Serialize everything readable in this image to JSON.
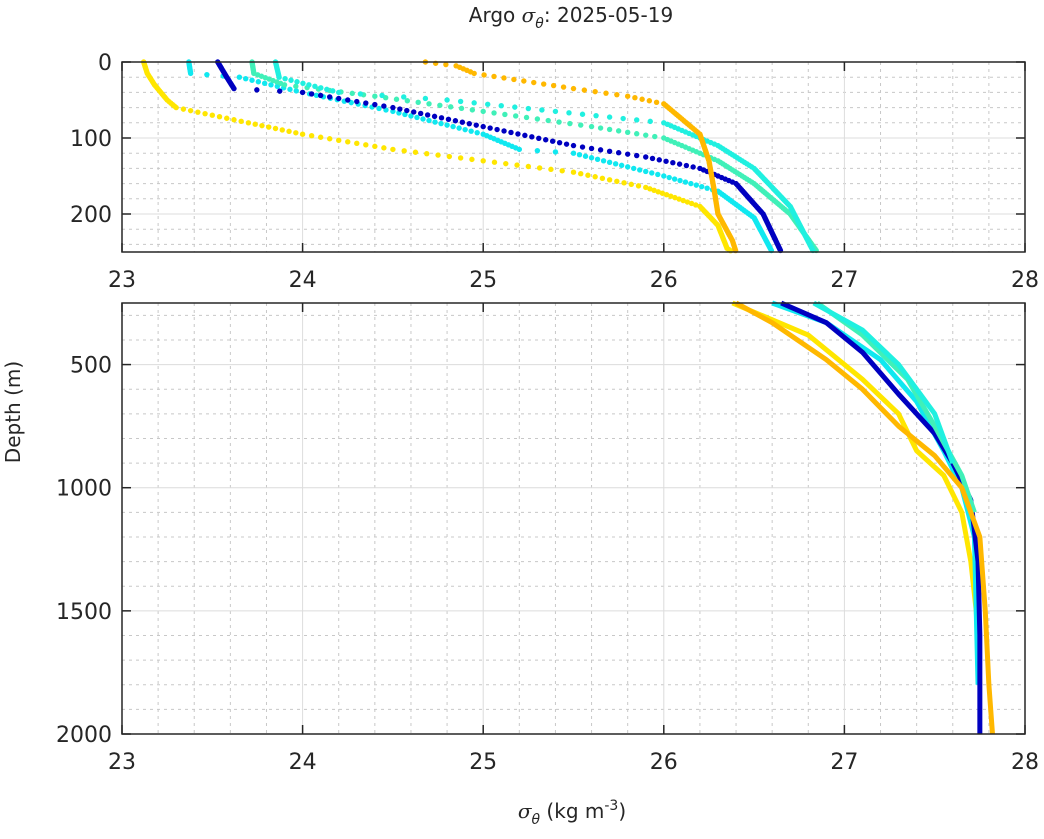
{
  "chart_data": {
    "type": "scatter",
    "title_prefix": "Argo ",
    "title_symbol": "σ",
    "title_sub": "θ",
    "title_suffix": ": 2025-05-19",
    "ylabel": "Depth (m)",
    "xlabel_symbol": "σ",
    "xlabel_sub": "θ",
    "xlabel_units": " (kg m",
    "xlabel_exp": "-3",
    "xlabel_close": ")",
    "xlim": [
      23,
      28
    ],
    "xticks": [
      "23",
      "24",
      "25",
      "26",
      "27",
      "28"
    ],
    "panels": [
      {
        "name": "upper",
        "ylim": [
          0,
          250
        ],
        "yticks": [
          "0",
          "100",
          "200"
        ],
        "yticks_values": [
          0,
          100,
          200
        ],
        "minor_y": 20,
        "style": "dots"
      },
      {
        "name": "lower",
        "ylim": [
          250,
          2000
        ],
        "yticks": [
          "500",
          "1000",
          "1500",
          "2000"
        ],
        "yticks_values": [
          500,
          1000,
          1500,
          2000
        ],
        "minor_y": 100,
        "style": "line"
      }
    ],
    "grid": true,
    "series": [
      {
        "name": "profile-yellow",
        "color": "#FFE600",
        "points": [
          [
            23.12,
            0
          ],
          [
            23.14,
            15
          ],
          [
            23.18,
            30
          ],
          [
            23.25,
            50
          ],
          [
            23.3,
            60
          ],
          [
            23.5,
            70
          ],
          [
            23.7,
            80
          ],
          [
            24.0,
            95
          ],
          [
            24.5,
            115
          ],
          [
            25.0,
            130
          ],
          [
            25.5,
            145
          ],
          [
            25.9,
            165
          ],
          [
            26.2,
            190
          ],
          [
            26.3,
            215
          ],
          [
            26.35,
            245
          ],
          [
            26.38,
            250
          ],
          [
            26.8,
            380
          ],
          [
            27.1,
            560
          ],
          [
            27.3,
            700
          ],
          [
            27.4,
            850
          ],
          [
            27.55,
            950
          ],
          [
            27.65,
            1100
          ],
          [
            27.7,
            1300
          ],
          [
            27.73,
            1500
          ],
          [
            27.75,
            1800
          ]
        ]
      },
      {
        "name": "profile-cyan-a",
        "color": "#10E8F0",
        "points": [
          [
            23.37,
            0
          ],
          [
            23.38,
            15
          ],
          [
            23.65,
            20
          ],
          [
            24.0,
            40
          ],
          [
            24.5,
            65
          ],
          [
            25.0,
            95
          ],
          [
            25.2,
            115
          ],
          [
            25.5,
            120
          ],
          [
            26.0,
            150
          ],
          [
            26.3,
            170
          ],
          [
            26.5,
            205
          ],
          [
            26.6,
            250
          ],
          [
            26.9,
            330
          ],
          [
            27.2,
            480
          ],
          [
            27.4,
            650
          ],
          [
            27.55,
            850
          ],
          [
            27.65,
            1000
          ],
          [
            27.72,
            1200
          ],
          [
            27.74,
            1800
          ]
        ]
      },
      {
        "name": "profile-blue",
        "color": "#0000C0",
        "points": [
          [
            23.53,
            0
          ],
          [
            23.58,
            20
          ],
          [
            23.62,
            35
          ],
          [
            24.0,
            40
          ],
          [
            24.5,
            60
          ],
          [
            25.0,
            85
          ],
          [
            25.5,
            110
          ],
          [
            25.9,
            125
          ],
          [
            26.2,
            140
          ],
          [
            26.4,
            160
          ],
          [
            26.55,
            200
          ],
          [
            26.65,
            250
          ],
          [
            26.9,
            330
          ],
          [
            27.1,
            450
          ],
          [
            27.3,
            620
          ],
          [
            27.5,
            780
          ],
          [
            27.6,
            900
          ],
          [
            27.7,
            1050
          ],
          [
            27.74,
            1300
          ],
          [
            27.75,
            1600
          ],
          [
            27.75,
            2000
          ]
        ]
      },
      {
        "name": "profile-aquamarine",
        "color": "#40F0B8",
        "points": [
          [
            23.72,
            0
          ],
          [
            23.73,
            15
          ],
          [
            23.9,
            30
          ],
          [
            24.4,
            45
          ],
          [
            25.0,
            65
          ],
          [
            25.6,
            85
          ],
          [
            26.0,
            100
          ],
          [
            26.3,
            130
          ],
          [
            26.5,
            160
          ],
          [
            26.7,
            200
          ],
          [
            26.85,
            250
          ],
          [
            27.1,
            380
          ],
          [
            27.35,
            560
          ],
          [
            27.5,
            750
          ],
          [
            27.65,
            950
          ],
          [
            27.72,
            1100
          ]
        ]
      },
      {
        "name": "profile-cyan-b",
        "color": "#20F0E0",
        "points": [
          [
            23.85,
            0
          ],
          [
            23.87,
            20
          ],
          [
            24.2,
            40
          ],
          [
            24.8,
            50
          ],
          [
            25.4,
            65
          ],
          [
            26.0,
            80
          ],
          [
            26.3,
            110
          ],
          [
            26.5,
            140
          ],
          [
            26.7,
            190
          ],
          [
            26.83,
            250
          ],
          [
            27.1,
            360
          ],
          [
            27.3,
            500
          ],
          [
            27.5,
            700
          ],
          [
            27.6,
            900
          ]
        ]
      },
      {
        "name": "profile-orange",
        "color": "#FFB800",
        "points": [
          [
            24.68,
            0
          ],
          [
            24.85,
            5
          ],
          [
            24.95,
            15
          ],
          [
            25.5,
            35
          ],
          [
            25.8,
            45
          ],
          [
            26.0,
            55
          ],
          [
            26.1,
            75
          ],
          [
            26.2,
            95
          ],
          [
            26.25,
            130
          ],
          [
            26.28,
            170
          ],
          [
            26.3,
            200
          ],
          [
            26.38,
            235
          ],
          [
            26.4,
            250
          ],
          [
            26.6,
            330
          ],
          [
            26.9,
            480
          ],
          [
            27.1,
            600
          ],
          [
            27.3,
            750
          ],
          [
            27.5,
            870
          ],
          [
            27.65,
            1000
          ],
          [
            27.75,
            1200
          ],
          [
            27.78,
            1500
          ],
          [
            27.8,
            1800
          ],
          [
            27.82,
            2000
          ]
        ]
      }
    ]
  }
}
